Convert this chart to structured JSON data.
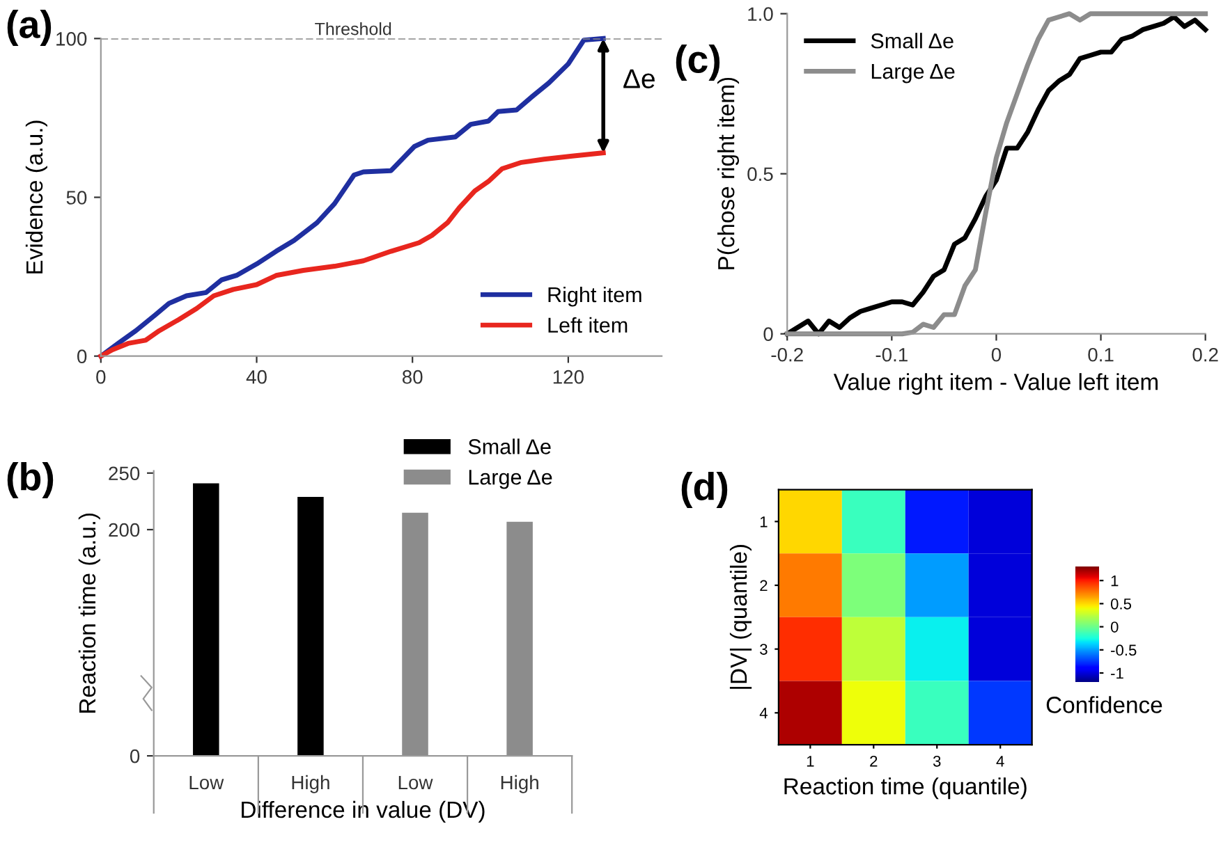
{
  "chart_data": [
    {
      "type": "line",
      "title": "(a)",
      "ylabel": "Evidence (a.u.)",
      "xlim": [
        0,
        144
      ],
      "ylim": [
        0,
        100
      ],
      "xticks": [
        0,
        40,
        80,
        120
      ],
      "yticks": [
        0,
        50,
        100
      ],
      "legend": "bottom right",
      "grid": false,
      "ref_lines": [
        {
          "axis": "y",
          "value": 100,
          "label": "Threshold",
          "color": "#888888",
          "line_style": "dashed"
        }
      ],
      "annotations": [
        {
          "text": "Δe",
          "x": 129,
          "y": 100
        }
      ],
      "series": [
        {
          "name": "Right item",
          "color": "#1f2fa0",
          "x": [
            0,
            4.4,
            9,
            14,
            17.5,
            22,
            27,
            31,
            35,
            40,
            45,
            49.6,
            55.5,
            60,
            65,
            67.4,
            74.5,
            80.5,
            84,
            91,
            95,
            99.5,
            102,
            106.7,
            111,
            115,
            120,
            124,
            129
          ],
          "values": [
            0,
            4,
            8,
            13,
            16.6,
            19,
            20,
            24,
            25.5,
            29,
            33,
            36.4,
            42,
            48,
            57,
            58,
            58.4,
            66,
            68,
            69,
            73,
            74,
            77,
            77.5,
            82,
            86,
            92,
            99.5,
            100
          ]
        },
        {
          "name": "Left item",
          "color": "#e8261e",
          "x": [
            0,
            3,
            7,
            11.5,
            15,
            20,
            24.6,
            29,
            34,
            40,
            45,
            52,
            60,
            67.4,
            74.5,
            81.7,
            85,
            89,
            92,
            96,
            99.5,
            103,
            108,
            113.8,
            121,
            129
          ],
          "values": [
            0,
            2,
            4,
            5,
            8,
            11.5,
            15,
            19,
            21,
            22.5,
            25.4,
            27,
            28.3,
            30,
            33,
            35.7,
            38,
            42,
            46.7,
            52,
            55,
            59,
            61,
            62,
            63,
            64
          ]
        }
      ]
    },
    {
      "type": "line",
      "title": "(c)",
      "xlabel": "Value right item - Value left item",
      "ylabel": "P(chose right item)",
      "xlim": [
        -0.2,
        0.2
      ],
      "ylim": [
        0,
        1
      ],
      "xticks": [
        -0.2,
        -0.1,
        0,
        0.1,
        0.2
      ],
      "yticks": [
        0,
        0.5,
        {
          "value": 1,
          "label": "1.0"
        }
      ],
      "legend": "top left",
      "grid": false,
      "x": [
        -0.2,
        -0.19,
        -0.18,
        -0.17,
        -0.16,
        -0.15,
        -0.14,
        -0.13,
        -0.12,
        -0.11,
        -0.1,
        -0.09,
        -0.08,
        -0.07,
        -0.06,
        -0.05,
        -0.04,
        -0.03,
        -0.02,
        -0.01,
        0,
        0.01,
        0.02,
        0.03,
        0.04,
        0.05,
        0.06,
        0.07,
        0.08,
        0.09,
        0.1,
        0.11,
        0.12,
        0.13,
        0.14,
        0.15,
        0.16,
        0.17,
        0.18,
        0.19,
        0.2
      ],
      "series": [
        {
          "name": "Small Δe",
          "color": "#000000",
          "values": [
            0,
            0.02,
            0.04,
            0,
            0.04,
            0.02,
            0.05,
            0.07,
            0.08,
            0.09,
            0.1,
            0.1,
            0.09,
            0.13,
            0.18,
            0.2,
            0.28,
            0.3,
            0.36,
            0.43,
            0.48,
            0.58,
            0.58,
            0.63,
            0.7,
            0.76,
            0.79,
            0.81,
            0.86,
            0.87,
            0.88,
            0.88,
            0.92,
            0.93,
            0.95,
            0.96,
            0.97,
            0.99,
            0.96,
            0.98,
            0.95
          ]
        },
        {
          "name": "Large Δe",
          "color": "#8c8c8c",
          "values": [
            0,
            0,
            0,
            0,
            0,
            0,
            0,
            0,
            0,
            0,
            0,
            0,
            0.005,
            0.03,
            0.02,
            0.06,
            0.06,
            0.15,
            0.2,
            0.38,
            0.55,
            0.66,
            0.75,
            0.84,
            0.92,
            0.98,
            0.99,
            1,
            0.98,
            1,
            1,
            1,
            1,
            1,
            1,
            1,
            1,
            1,
            1,
            1,
            1
          ]
        }
      ]
    },
    {
      "type": "bar",
      "title": "(b)",
      "xlabel": "Difference in value (DV)",
      "ylabel": "Reaction time (a.u.)",
      "categories": [
        "Low",
        "High",
        "Low",
        "High"
      ],
      "ylim": [
        0,
        252
      ],
      "yticks": [
        0,
        200,
        250
      ],
      "legend": "top right",
      "grid": false,
      "series": [
        {
          "name": "Small Δe",
          "color": "#000000",
          "values": [
            241,
            229,
            null,
            null
          ]
        },
        {
          "name": "Large Δe",
          "color": "#8c8c8c",
          "values": [
            null,
            null,
            215,
            207
          ]
        }
      ]
    },
    {
      "type": "heatmap",
      "title": "(d)",
      "xlabel": "Reaction time (quantile)",
      "ylabel": "|DV| (quantile)",
      "clabel": "Confidence",
      "categories": [
        "1",
        "2",
        "3",
        "4"
      ],
      "y_categories": [
        "1",
        "2",
        "3",
        "4"
      ],
      "cells": [
        [
          0.5,
          -0.15,
          -0.82,
          -1.0
        ],
        [
          0.75,
          0.05,
          -0.5,
          -1.0
        ],
        [
          0.95,
          0.25,
          -0.3,
          -1.0
        ],
        [
          1.2,
          0.4,
          -0.15,
          -0.75
        ]
      ],
      "clim": [
        -1.2,
        1.3
      ],
      "cticks": [
        {
          "value": -1,
          "label": "-1"
        },
        {
          "value": -0.5,
          "label": "-0.5"
        },
        0,
        0.5,
        1
      ]
    }
  ]
}
